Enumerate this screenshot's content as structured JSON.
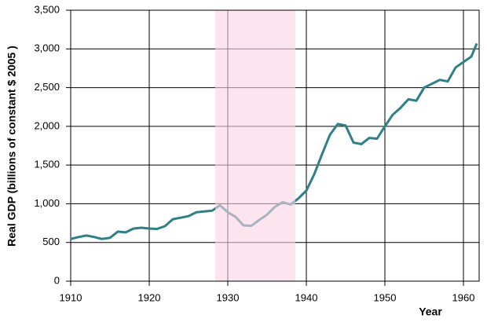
{
  "chart_data": {
    "type": "line",
    "x_label": "Year",
    "y_label": "Real GDP (billions of constant $ 2005 )",
    "x": [
      1910,
      1911,
      1912,
      1913,
      1914,
      1915,
      1916,
      1917,
      1918,
      1919,
      1920,
      1921,
      1922,
      1923,
      1924,
      1925,
      1926,
      1927,
      1928,
      1929,
      1930,
      1931,
      1932,
      1933,
      1934,
      1935,
      1936,
      1937,
      1938,
      1939,
      1940,
      1941,
      1942,
      1943,
      1944,
      1945,
      1946,
      1947,
      1948,
      1949,
      1950,
      1951,
      1952,
      1953,
      1954,
      1955,
      1956,
      1957,
      1958,
      1959,
      1960,
      1961,
      1961.7
    ],
    "series": [
      {
        "color": "#2e7f86",
        "values": [
          545,
          570,
          590,
          570,
          545,
          560,
          640,
          630,
          680,
          690,
          680,
          675,
          710,
          800,
          820,
          840,
          890,
          900,
          910,
          980,
          890,
          830,
          720,
          715,
          790,
          860,
          960,
          1020,
          990,
          1070,
          1170,
          1380,
          1640,
          1890,
          2030,
          2010,
          1790,
          1770,
          1850,
          1840,
          2000,
          2150,
          2240,
          2350,
          2330,
          2500,
          2550,
          2600,
          2580,
          2760,
          2830,
          2900,
          3070
        ]
      }
    ],
    "shade": {
      "color": "#fbd3e6",
      "range": [
        1928.4,
        1938.6
      ]
    },
    "xlim": [
      1910,
      1962
    ],
    "ylim": [
      0,
      3500
    ],
    "xticks": [
      1910,
      1920,
      1930,
      1940,
      1950,
      1960
    ],
    "yticks": [
      0,
      500,
      {
        "value": 1000,
        "label": "1,000"
      },
      {
        "value": 1500,
        "label": "1,500"
      },
      {
        "value": 2000,
        "label": "2,000"
      },
      {
        "value": 2500,
        "label": "2,500"
      },
      {
        "value": 3000,
        "label": "3,000"
      },
      {
        "value": 3500,
        "label": "3,500"
      }
    ],
    "grid": true
  }
}
